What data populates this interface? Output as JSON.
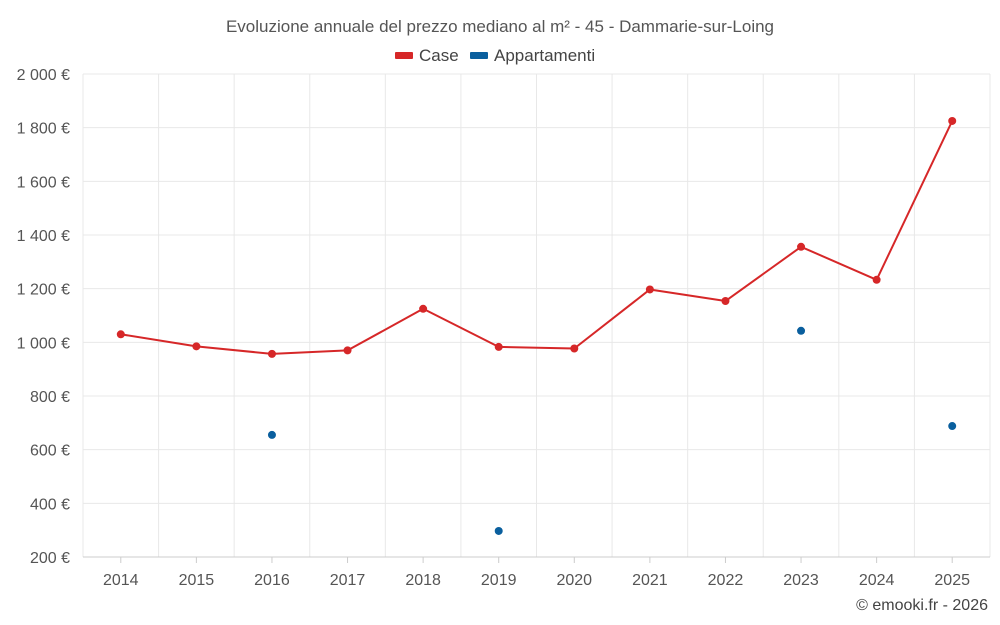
{
  "chart_data": {
    "type": "line",
    "title": "Evoluzione annuale del prezzo mediano al m² - 45 - Dammarie-sur-Loing",
    "categories": [
      "2014",
      "2015",
      "2016",
      "2017",
      "2018",
      "2019",
      "2020",
      "2021",
      "2022",
      "2023",
      "2024",
      "2025"
    ],
    "ylim": [
      200,
      2000
    ],
    "yticks": [
      200,
      400,
      600,
      800,
      1000,
      1200,
      1400,
      1600,
      1800,
      2000
    ],
    "ytick_labels": [
      "200 €",
      "400 €",
      "600 €",
      "800 €",
      "1 000 €",
      "1 200 €",
      "1 400 €",
      "1 600 €",
      "1 800 €",
      "2 000 €"
    ],
    "grid": true,
    "legend_position": "top-center",
    "series": [
      {
        "name": "Case",
        "color": "#d62728",
        "style": "line-markers",
        "values": [
          1030,
          985,
          957,
          970,
          1125,
          983,
          977,
          1197,
          1154,
          1356,
          1233,
          1825
        ]
      },
      {
        "name": "Appartamenti",
        "color": "#0a5f9e",
        "style": "markers",
        "values": [
          null,
          null,
          655,
          null,
          null,
          297,
          null,
          null,
          null,
          1043,
          null,
          688
        ]
      }
    ],
    "credit": "© emooki.fr - 2026"
  }
}
